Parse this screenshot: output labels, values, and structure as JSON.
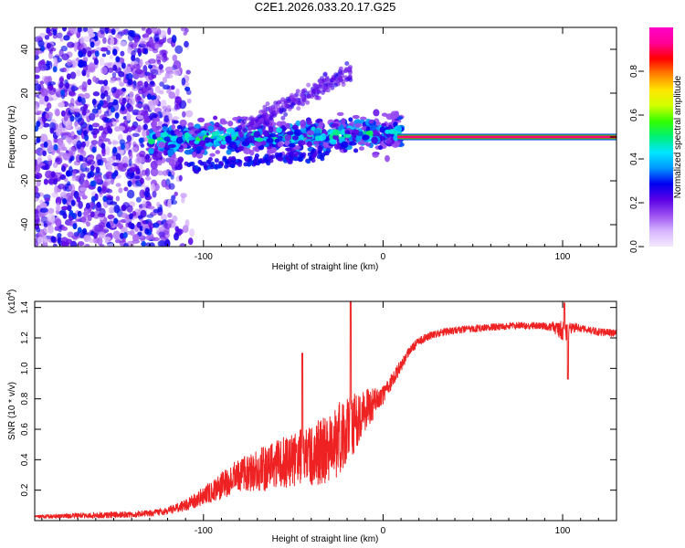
{
  "title": "C2E1.2026.033.20.17.G25",
  "chart_data": [
    {
      "type": "heatmap",
      "xlabel": "Height of straight line (km)",
      "ylabel": "Frequency (Hz)",
      "xlim": [
        -194,
        130
      ],
      "ylim": [
        -50,
        50
      ],
      "xticks": [
        -100,
        0,
        100
      ],
      "xtick_labels": [
        "-100",
        "0",
        "100"
      ],
      "yticks": [
        -40,
        -20,
        0,
        20,
        40
      ],
      "ytick_labels": [
        "-40",
        "-20",
        "0",
        "20",
        "40"
      ],
      "colorbar": {
        "label": "Normalized spectral amplitude",
        "range": [
          0,
          1
        ],
        "ticks": [
          0.0,
          0.2,
          0.4,
          0.6,
          0.8
        ],
        "tick_labels": [
          "0.0",
          "0.2",
          "0.4",
          "0.6",
          "0.8"
        ],
        "stops": [
          "#f4e9ff",
          "#d8b6ff",
          "#9c50f0",
          "#5a00e6",
          "#0000f0",
          "#0096ff",
          "#00e6ff",
          "#00f078",
          "#32ff00",
          "#d2ff00",
          "#ffe600",
          "#ff8200",
          "#ff0000",
          "#ff0096",
          "#ff00c8"
        ]
      },
      "features": [
        {
          "name": "diffuse noise",
          "x_range": [
            -194,
            -105
          ],
          "freq_range": [
            -50,
            50
          ],
          "amplitude": [
            0.05,
            0.3
          ]
        },
        {
          "name": "signal band",
          "x_range": [
            -130,
            10
          ],
          "freq_center": [
            -2,
            2
          ],
          "freq_width": 8,
          "amplitude": [
            0.2,
            0.55
          ]
        },
        {
          "name": "carrier line",
          "x_range": [
            8,
            130
          ],
          "freq": 0,
          "amplitude": 1.0
        }
      ]
    },
    {
      "type": "line",
      "xlabel": "Height of straight line (km)",
      "ylabel": "SNR (10 * v/v)",
      "scale_label": "(x10",
      "scale_exponent": "4",
      "scale_close": ")",
      "xlim": [
        -194,
        130
      ],
      "ylim": [
        0,
        14400
      ],
      "xticks": [
        -100,
        0,
        100
      ],
      "xtick_labels": [
        "-100",
        "0",
        "100"
      ],
      "yticks": [
        2000,
        4000,
        6000,
        8000,
        10000,
        12000,
        14000
      ],
      "ytick_labels": [
        "0.2",
        "0.4",
        "0.6",
        "0.8",
        "1.0",
        "1.2",
        "1.4"
      ],
      "color": "#ee2222",
      "series": [
        {
          "name": "SNR",
          "x": [
            -194,
            -180,
            -160,
            -140,
            -130,
            -120,
            -110,
            -100,
            -90,
            -80,
            -70,
            -60,
            -50,
            -40,
            -30,
            -25,
            -20,
            -15,
            -10,
            -5,
            0,
            5,
            10,
            15,
            20,
            25,
            30,
            40,
            50,
            60,
            70,
            80,
            90,
            95,
            100,
            103,
            106,
            110,
            120,
            130
          ],
          "y": [
            250,
            300,
            350,
            400,
            480,
            650,
            1000,
            1600,
            2300,
            3000,
            3300,
            3600,
            4000,
            4300,
            4700,
            5300,
            6000,
            6500,
            7200,
            7700,
            8200,
            9200,
            10200,
            11200,
            11800,
            12100,
            12300,
            12500,
            12600,
            12700,
            12800,
            12800,
            12800,
            12700,
            12500,
            12400,
            12700,
            12600,
            12400,
            12300
          ],
          "noise": [
            100,
            150,
            200,
            200,
            200,
            250,
            350,
            600,
            900,
            1100,
            1400,
            1600,
            1800,
            2000,
            2300,
            2500,
            2200,
            1900,
            1400,
            1000,
            600,
            500,
            400,
            300,
            260,
            260,
            250,
            240,
            230,
            230,
            230,
            230,
            240,
            350,
            700,
            600,
            350,
            260,
            240,
            230
          ]
        }
      ],
      "annotations": [
        {
          "type": "spike",
          "x": -18,
          "y": 14400
        },
        {
          "type": "spike",
          "x": -45,
          "y": 11000
        },
        {
          "type": "spike",
          "x": 101,
          "y": 14300
        },
        {
          "type": "dip",
          "x": 103,
          "y": 9300
        }
      ]
    }
  ]
}
